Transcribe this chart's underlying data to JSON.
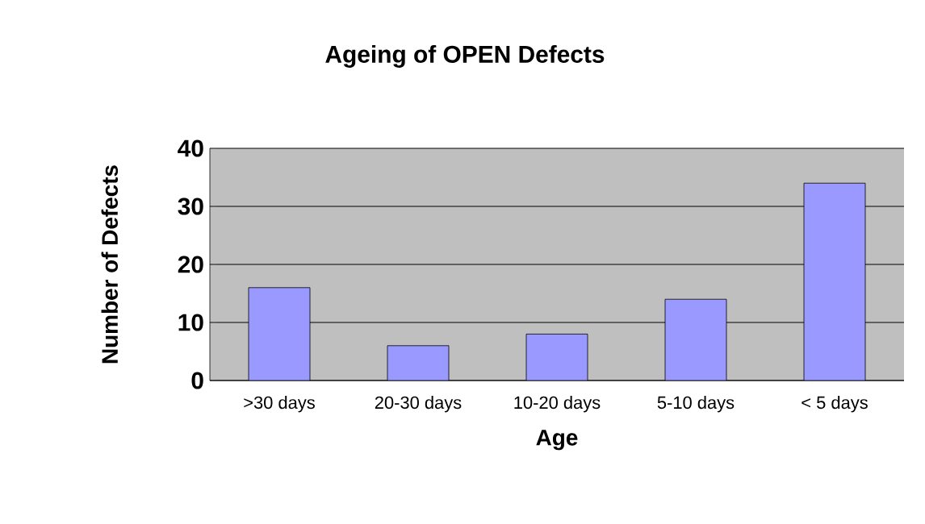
{
  "chart_data": {
    "type": "bar",
    "title": "Ageing of OPEN Defects",
    "xlabel": "Age",
    "ylabel": "Number of Defects",
    "categories": [
      ">30 days",
      "20-30 days",
      "10-20 days",
      "5-10 days",
      "< 5 days"
    ],
    "values": [
      16,
      6,
      8,
      14,
      34
    ],
    "color": "#9999ff",
    "ylim": [
      0,
      40
    ],
    "yticks": [
      0,
      10,
      20,
      30,
      40
    ],
    "grid": "y"
  }
}
